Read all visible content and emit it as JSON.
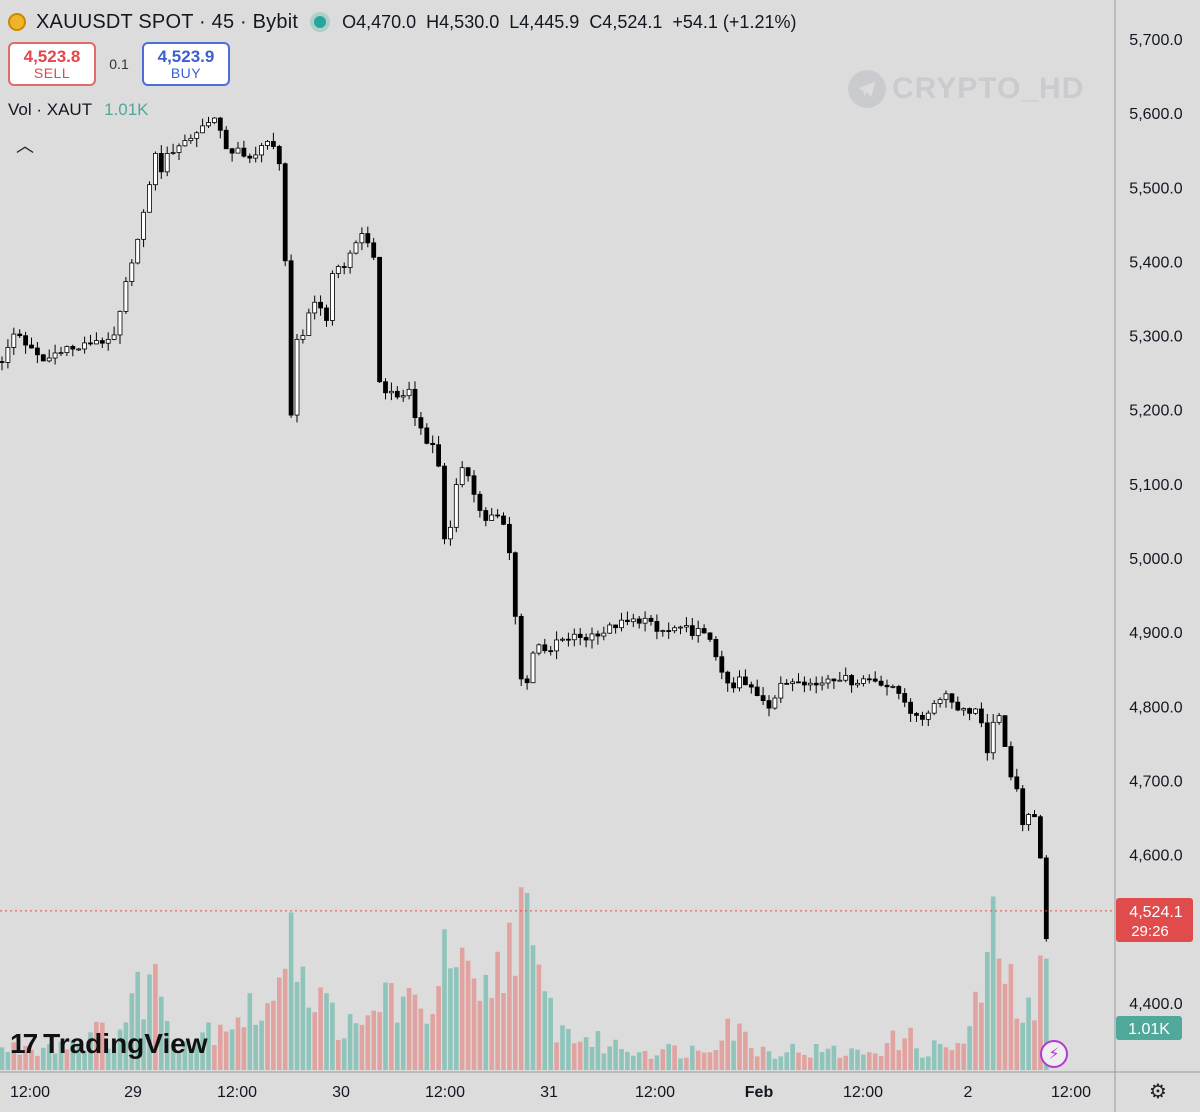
{
  "header": {
    "symbol": "XAUUSDT SPOT · 45 · Bybit",
    "open": "O4,470.0",
    "high": "H4,530.0",
    "low": "L4,445.9",
    "close": "C4,524.1",
    "change": "+54.1 (+1.21%)"
  },
  "trade": {
    "sell_price": "4,523.8",
    "sell_label": "SELL",
    "quantity": "0.1",
    "buy_price": "4,523.9",
    "buy_label": "BUY"
  },
  "volume_legend": {
    "label": "Vol · XAUT",
    "value": "1.01K"
  },
  "watermark": "CRYPTO_HD",
  "brand": "TradingView",
  "price_tag": {
    "price": "4,524.1",
    "countdown": "29:26"
  },
  "volume_tag": "1.01K",
  "colors": {
    "up": "#ffffff",
    "down": "#000000",
    "vol_up": "#8fc4bb",
    "vol_down": "#e1a3a0",
    "price_tag": "#e04b4b",
    "volume_tag": "#4fa89a"
  },
  "icons": [
    "xaut-logo-icon",
    "market-open-dot-icon",
    "collapse-chevron-icon",
    "telegram-icon",
    "tradingview-logo-icon",
    "lightning-icon",
    "settings-gear-icon"
  ],
  "chart_data": {
    "type": "candlestick",
    "interval": "45",
    "y_ticks": [
      4400,
      4600,
      4700,
      4800,
      4900,
      5000,
      5100,
      5200,
      5300,
      5400,
      5500,
      5600,
      5700
    ],
    "y_tick_labels": [
      "4,400.0",
      "4,600.0",
      "4,700.0",
      "4,800.0",
      "4,900.0",
      "5,000.0",
      "5,100.0",
      "5,200.0",
      "5,300.0",
      "5,400.0",
      "5,500.0",
      "5,600.0",
      "5,700.0"
    ],
    "x_tick_labels": [
      "12:00",
      "29",
      "12:00",
      "30",
      "12:00",
      "31",
      "12:00",
      "Feb",
      "12:00",
      "2",
      "12:00"
    ],
    "current_price": 4524.1,
    "candle_path": [
      [
        0,
        5265
      ],
      [
        5,
        5270
      ],
      [
        10,
        5290
      ],
      [
        15,
        5305
      ],
      [
        20,
        5300
      ],
      [
        28,
        5285
      ],
      [
        35,
        5275
      ],
      [
        42,
        5265
      ],
      [
        50,
        5270
      ],
      [
        58,
        5280
      ],
      [
        66,
        5285
      ],
      [
        74,
        5280
      ],
      [
        82,
        5285
      ],
      [
        90,
        5290
      ],
      [
        98,
        5295
      ],
      [
        106,
        5290
      ],
      [
        112,
        5290
      ],
      [
        118,
        5315
      ],
      [
        123,
        5350
      ],
      [
        126,
        5370
      ],
      [
        130,
        5395
      ],
      [
        136,
        5420
      ],
      [
        142,
        5450
      ],
      [
        146,
        5480
      ],
      [
        150,
        5510
      ],
      [
        154,
        5550
      ],
      [
        160,
        5520
      ],
      [
        166,
        5540
      ],
      [
        170,
        5545
      ],
      [
        176,
        5555
      ],
      [
        182,
        5560
      ],
      [
        188,
        5565
      ],
      [
        194,
        5570
      ],
      [
        200,
        5580
      ],
      [
        206,
        5585
      ],
      [
        212,
        5600
      ],
      [
        218,
        5580
      ],
      [
        224,
        5560
      ],
      [
        230,
        5545
      ],
      [
        236,
        5555
      ],
      [
        242,
        5540
      ],
      [
        248,
        5535
      ],
      [
        254,
        5545
      ],
      [
        260,
        5555
      ],
      [
        266,
        5560
      ],
      [
        272,
        5555
      ],
      [
        278,
        5545
      ],
      [
        283,
        5510
      ],
      [
        290,
        5165
      ],
      [
        296,
        5290
      ],
      [
        302,
        5295
      ],
      [
        308,
        5330
      ],
      [
        314,
        5345
      ],
      [
        320,
        5345
      ],
      [
        326,
        5310
      ],
      [
        332,
        5385
      ],
      [
        338,
        5395
      ],
      [
        344,
        5390
      ],
      [
        350,
        5410
      ],
      [
        356,
        5425
      ],
      [
        362,
        5440
      ],
      [
        368,
        5420
      ],
      [
        374,
        5400
      ],
      [
        380,
        5230
      ],
      [
        386,
        5220
      ],
      [
        392,
        5230
      ],
      [
        398,
        5210
      ],
      [
        404,
        5220
      ],
      [
        410,
        5230
      ],
      [
        416,
        5180
      ],
      [
        422,
        5175
      ],
      [
        428,
        5150
      ],
      [
        434,
        5160
      ],
      [
        440,
        5110
      ],
      [
        446,
        5000
      ],
      [
        452,
        5060
      ],
      [
        458,
        5110
      ],
      [
        464,
        5120
      ],
      [
        470,
        5110
      ],
      [
        476,
        5080
      ],
      [
        482,
        5055
      ],
      [
        488,
        5050
      ],
      [
        494,
        5060
      ],
      [
        500,
        5050
      ],
      [
        506,
        5040
      ],
      [
        512,
        4980
      ],
      [
        518,
        4880
      ],
      [
        524,
        4800
      ],
      [
        530,
        4860
      ],
      [
        536,
        4890
      ],
      [
        542,
        4880
      ],
      [
        548,
        4860
      ],
      [
        554,
        4890
      ],
      [
        560,
        4885
      ],
      [
        566,
        4890
      ],
      [
        572,
        4893
      ],
      [
        578,
        4895
      ],
      [
        584,
        4890
      ],
      [
        590,
        4895
      ],
      [
        596,
        4900
      ],
      [
        602,
        4898
      ],
      [
        608,
        4905
      ],
      [
        614,
        4908
      ],
      [
        620,
        4912
      ],
      [
        626,
        4912
      ],
      [
        632,
        4915
      ],
      [
        638,
        4916
      ],
      [
        644,
        4918
      ],
      [
        650,
        4912
      ],
      [
        656,
        4900
      ],
      [
        662,
        4902
      ],
      [
        668,
        4900
      ],
      [
        674,
        4905
      ],
      [
        680,
        4902
      ],
      [
        686,
        4905
      ],
      [
        692,
        4900
      ],
      [
        698,
        4902
      ],
      [
        704,
        4895
      ],
      [
        710,
        4892
      ],
      [
        716,
        4870
      ],
      [
        722,
        4840
      ],
      [
        728,
        4830
      ],
      [
        734,
        4822
      ],
      [
        740,
        4840
      ],
      [
        746,
        4825
      ],
      [
        752,
        4825
      ],
      [
        758,
        4815
      ],
      [
        764,
        4810
      ],
      [
        770,
        4800
      ],
      [
        776,
        4815
      ],
      [
        782,
        4830
      ],
      [
        788,
        4832
      ],
      [
        794,
        4836
      ],
      [
        800,
        4838
      ],
      [
        806,
        4832
      ],
      [
        812,
        4830
      ],
      [
        818,
        4828
      ],
      [
        824,
        4835
      ],
      [
        830,
        4840
      ],
      [
        836,
        4838
      ],
      [
        842,
        4840
      ],
      [
        848,
        4835
      ],
      [
        854,
        4832
      ],
      [
        860,
        4835
      ],
      [
        866,
        4838
      ],
      [
        872,
        4836
      ],
      [
        878,
        4835
      ],
      [
        884,
        4830
      ],
      [
        890,
        4825
      ],
      [
        896,
        4820
      ],
      [
        902,
        4815
      ],
      [
        908,
        4800
      ],
      [
        914,
        4785
      ],
      [
        920,
        4780
      ],
      [
        926,
        4790
      ],
      [
        932,
        4800
      ],
      [
        938,
        4810
      ],
      [
        944,
        4820
      ],
      [
        950,
        4810
      ],
      [
        956,
        4800
      ],
      [
        962,
        4795
      ],
      [
        968,
        4792
      ],
      [
        974,
        4798
      ],
      [
        980,
        4790
      ],
      [
        986,
        4720
      ],
      [
        992,
        4780
      ],
      [
        998,
        4790
      ],
      [
        1004,
        4750
      ],
      [
        1010,
        4710
      ],
      [
        1016,
        4700
      ],
      [
        1022,
        4640
      ],
      [
        1028,
        4650
      ],
      [
        1034,
        4660
      ],
      [
        1040,
        4600
      ],
      [
        1046,
        4480
      ],
      [
        1052,
        4524.1
      ]
    ],
    "volume_path": [
      [
        0,
        0.3
      ],
      [
        60,
        0.4
      ],
      [
        120,
        0.6
      ],
      [
        150,
        1.5
      ],
      [
        180,
        0.4
      ],
      [
        230,
        0.8
      ],
      [
        283,
        1.0
      ],
      [
        290,
        4.0
      ],
      [
        296,
        2.0
      ],
      [
        302,
        1.5
      ],
      [
        320,
        1.0
      ],
      [
        360,
        0.5
      ],
      [
        386,
        1.2
      ],
      [
        420,
        0.8
      ],
      [
        450,
        1.7
      ],
      [
        480,
        0.9
      ],
      [
        512,
        2.0
      ],
      [
        518,
        3.0
      ],
      [
        524,
        2.5
      ],
      [
        530,
        1.5
      ],
      [
        560,
        0.6
      ],
      [
        600,
        0.4
      ],
      [
        640,
        0.3
      ],
      [
        700,
        0.3
      ],
      [
        716,
        0.5
      ],
      [
        722,
        0.8
      ],
      [
        760,
        0.3
      ],
      [
        800,
        0.3
      ],
      [
        860,
        0.25
      ],
      [
        908,
        0.5
      ],
      [
        920,
        0.3
      ],
      [
        968,
        0.4
      ],
      [
        986,
        1.6
      ],
      [
        998,
        2.0
      ],
      [
        1010,
        1.2
      ],
      [
        1022,
        0.9
      ],
      [
        1034,
        0.7
      ],
      [
        1040,
        1.5
      ],
      [
        1046,
        1.3
      ],
      [
        1052,
        0.6
      ]
    ]
  }
}
